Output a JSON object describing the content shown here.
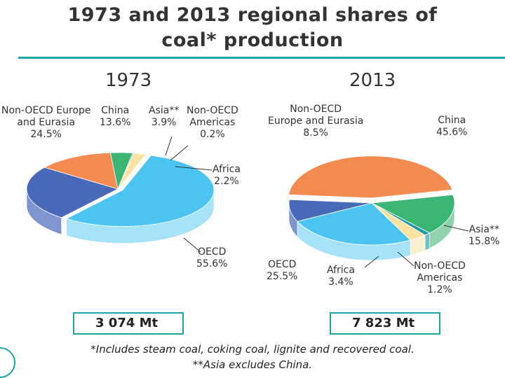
{
  "title_line1": "1973 and 2013 regional shares of",
  "title_line2": "coal* production",
  "chart_data": [
    {
      "type": "pie",
      "title": "1973",
      "total": "3 074 Mt",
      "slices": [
        {
          "name": "OECD",
          "value": 55.6,
          "label": "55.6%",
          "color": "#4bc4f2",
          "side_color": "#a6e3fb"
        },
        {
          "name": "Non-OECD Europe and Eurasia",
          "value": 24.5,
          "label": "24.5%",
          "color": "#4868b8",
          "side_color": "#7e95d0"
        },
        {
          "name": "China",
          "value": 13.6,
          "label": "13.6%",
          "color": "#f38b50",
          "side_color": "#f7b48c"
        },
        {
          "name": "Asia**",
          "value": 3.9,
          "label": "3.9%",
          "color": "#3bb573",
          "side_color": "#8fd4ad"
        },
        {
          "name": "Non-OECD Americas",
          "value": 0.2,
          "label": "0.2%",
          "color": "#1f9aa6",
          "side_color": "#6cc3cb"
        },
        {
          "name": "Africa",
          "value": 2.2,
          "label": "2.2%",
          "color": "#fde3a2",
          "side_color": "#fdf0cf"
        }
      ]
    },
    {
      "type": "pie",
      "title": "2013",
      "total": "7 823 Mt",
      "slices": [
        {
          "name": "China",
          "value": 45.6,
          "label": "45.6%",
          "color": "#f38b50",
          "side_color": "#f7b48c"
        },
        {
          "name": "Asia**",
          "value": 15.8,
          "label": "15.8%",
          "color": "#3bb573",
          "side_color": "#8fd4ad"
        },
        {
          "name": "Non-OECD Americas",
          "value": 1.2,
          "label": "1.2%",
          "color": "#1f9aa6",
          "side_color": "#6cc3cb"
        },
        {
          "name": "Africa",
          "value": 3.4,
          "label": "3.4%",
          "color": "#fde3a2",
          "side_color": "#fdf0cf"
        },
        {
          "name": "OECD",
          "value": 25.5,
          "label": "25.5%",
          "color": "#4bc4f2",
          "side_color": "#a6e3fb"
        },
        {
          "name": "Non-OECD Europe and Eurasia",
          "value": 8.5,
          "label": "8.5%",
          "color": "#4868b8",
          "side_color": "#7e95d0"
        }
      ]
    }
  ],
  "labels_1973": {
    "noecd_europe": "Non-OECD Europe\nand Eurasia\n24.5%",
    "china": "China\n13.6%",
    "asia": "Asia**\n3.9%",
    "noecd_americas": "Non-OECD\nAmericas\n0.2%",
    "africa": "Africa\n2.2%",
    "oecd": "OECD\n55.6%"
  },
  "labels_2013": {
    "noecd_europe": "Non-OECD\nEurope and Eurasia\n8.5%",
    "china": "China\n45.6%",
    "asia": "Asia**\n15.8%",
    "noecd_americas": "Non-OECD\nAmericas\n1.2%",
    "africa": "Africa\n3.4%",
    "oecd": "OECD\n25.5%"
  },
  "footnote1": "*Includes steam coal, coking coal, lignite and recovered coal.",
  "footnote2": "**Asia excludes China."
}
